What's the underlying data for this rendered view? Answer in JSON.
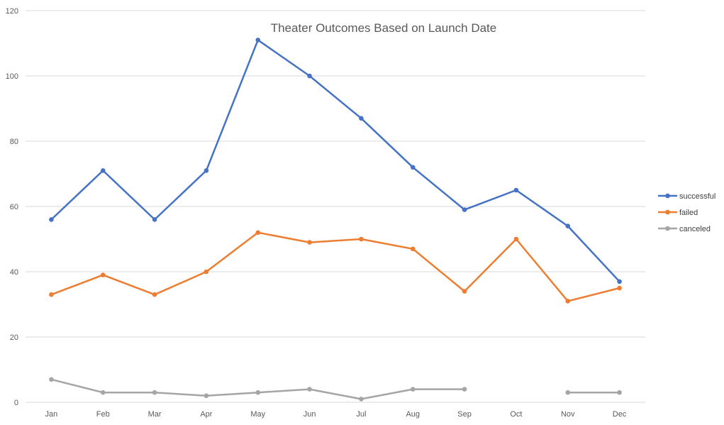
{
  "chart_data": {
    "type": "line",
    "title": "Theater Outcomes Based on Launch Date",
    "xlabel": "",
    "ylabel": "",
    "categories": [
      "Jan",
      "Feb",
      "Mar",
      "Apr",
      "May",
      "Jun",
      "Jul",
      "Aug",
      "Sep",
      "Oct",
      "Nov",
      "Dec"
    ],
    "ylim": [
      0,
      120
    ],
    "yticks": [
      0,
      20,
      40,
      60,
      80,
      100,
      120
    ],
    "grid": true,
    "legend_position": "right",
    "series": [
      {
        "name": "successful",
        "color": "#4472c4",
        "values": [
          56,
          71,
          56,
          71,
          111,
          100,
          87,
          72,
          59,
          65,
          54,
          37
        ]
      },
      {
        "name": "failed",
        "color": "#ed7d31",
        "values": [
          33,
          39,
          33,
          40,
          52,
          49,
          50,
          47,
          34,
          50,
          31,
          35
        ]
      },
      {
        "name": "canceled",
        "color": "#a5a5a5",
        "values": [
          7,
          3,
          3,
          2,
          3,
          4,
          1,
          4,
          4,
          null,
          3,
          3
        ]
      }
    ]
  }
}
